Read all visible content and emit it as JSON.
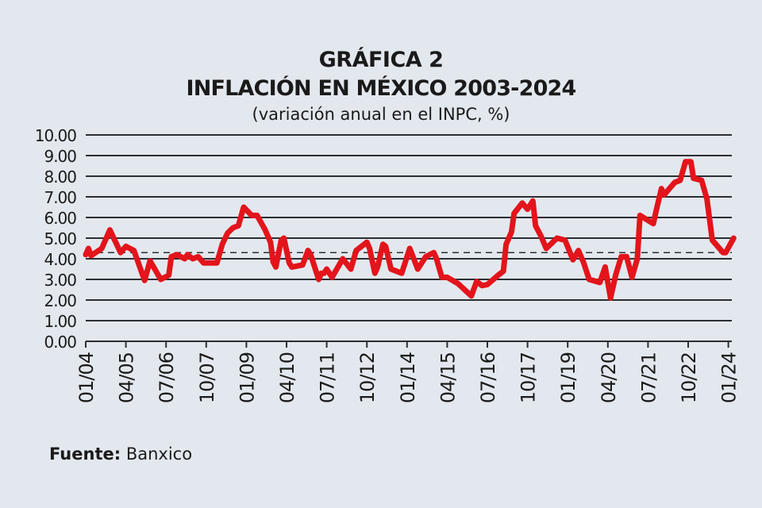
{
  "chart_data": {
    "type": "line",
    "title": "GRÁFICA 2",
    "subtitle": "INFLACIÓN EN MÉXICO 2003-2024",
    "ylabel": "(variación anual en el INPC, %)",
    "xlabel": "",
    "ylim": [
      0,
      10
    ],
    "yticks": [
      "0.00",
      "1.00",
      "2.00",
      "3.00",
      "4.00",
      "5.00",
      "6.00",
      "7.00",
      "8.00",
      "9.00",
      "10.00"
    ],
    "xticks": [
      "01/04",
      "04/05",
      "07/06",
      "10/07",
      "01/09",
      "04/10",
      "07/11",
      "10/12",
      "01/14",
      "04/15",
      "07/16",
      "10/17",
      "01/19",
      "04/20",
      "07/21",
      "10/22",
      "01/24"
    ],
    "grid": true,
    "reference_line": {
      "value": 4.3,
      "style": "dashed"
    },
    "line_color": "#e3141b",
    "series": [
      {
        "points": [
          [
            "2004-01",
            4.2
          ],
          [
            "2004-02",
            4.5
          ],
          [
            "2004-03",
            4.15
          ],
          [
            "2004-07",
            4.5
          ],
          [
            "2004-10",
            5.4
          ],
          [
            "2005-02",
            4.3
          ],
          [
            "2005-04",
            4.6
          ],
          [
            "2005-07",
            4.4
          ],
          [
            "2005-11",
            2.95
          ],
          [
            "2006-01",
            3.9
          ],
          [
            "2006-05",
            3.0
          ],
          [
            "2006-08",
            3.2
          ],
          [
            "2006-09",
            4.1
          ],
          [
            "2006-11",
            4.2
          ],
          [
            "2007-02",
            4.0
          ],
          [
            "2007-03",
            4.2
          ],
          [
            "2007-05",
            4.0
          ],
          [
            "2007-07",
            4.1
          ],
          [
            "2007-09",
            3.8
          ],
          [
            "2008-02",
            3.8
          ],
          [
            "2008-04",
            4.7
          ],
          [
            "2008-06",
            5.25
          ],
          [
            "2008-08",
            5.5
          ],
          [
            "2008-10",
            5.6
          ],
          [
            "2008-12",
            6.5
          ],
          [
            "2009-03",
            6.1
          ],
          [
            "2009-05",
            6.1
          ],
          [
            "2009-08",
            5.4
          ],
          [
            "2009-10",
            4.8
          ],
          [
            "2009-11",
            3.85
          ],
          [
            "2009-12",
            3.6
          ],
          [
            "2010-02",
            4.9
          ],
          [
            "2010-03",
            5.0
          ],
          [
            "2010-05",
            3.8
          ],
          [
            "2010-06",
            3.6
          ],
          [
            "2010-10",
            3.7
          ],
          [
            "2010-12",
            4.4
          ],
          [
            "2011-01",
            4.2
          ],
          [
            "2011-03",
            3.4
          ],
          [
            "2011-04",
            3.0
          ],
          [
            "2011-05",
            3.3
          ],
          [
            "2011-06",
            3.3
          ],
          [
            "2011-07",
            3.5
          ],
          [
            "2011-09",
            3.1
          ],
          [
            "2012-01",
            4.0
          ],
          [
            "2012-04",
            3.5
          ],
          [
            "2012-06",
            4.4
          ],
          [
            "2012-10",
            4.8
          ],
          [
            "2012-11",
            4.5
          ],
          [
            "2013-01",
            3.3
          ],
          [
            "2013-02",
            3.6
          ],
          [
            "2013-04",
            4.7
          ],
          [
            "2013-05",
            4.6
          ],
          [
            "2013-07",
            3.5
          ],
          [
            "2013-11",
            3.3
          ],
          [
            "2014-02",
            4.5
          ],
          [
            "2014-05",
            3.5
          ],
          [
            "2014-08",
            4.1
          ],
          [
            "2014-11",
            4.3
          ],
          [
            "2014-12",
            4.0
          ],
          [
            "2015-02",
            3.1
          ],
          [
            "2015-04",
            3.1
          ],
          [
            "2015-08",
            2.8
          ],
          [
            "2016-01",
            2.2
          ],
          [
            "2016-03",
            2.9
          ],
          [
            "2016-05",
            2.7
          ],
          [
            "2016-07",
            2.75
          ],
          [
            "2016-11",
            3.2
          ],
          [
            "2017-01",
            3.4
          ],
          [
            "2017-02",
            4.7
          ],
          [
            "2017-04",
            5.3
          ],
          [
            "2017-05",
            6.2
          ],
          [
            "2017-08",
            6.7
          ],
          [
            "2017-10",
            6.4
          ],
          [
            "2017-12",
            6.8
          ],
          [
            "2018-01",
            5.6
          ],
          [
            "2018-03",
            5.1
          ],
          [
            "2018-05",
            4.5
          ],
          [
            "2018-09",
            5.0
          ],
          [
            "2018-12",
            4.9
          ],
          [
            "2019-03",
            3.95
          ],
          [
            "2019-05",
            4.4
          ],
          [
            "2019-07",
            3.8
          ],
          [
            "2019-09",
            3.0
          ],
          [
            "2020-01",
            2.85
          ],
          [
            "2020-03",
            3.6
          ],
          [
            "2020-05",
            2.1
          ],
          [
            "2020-07",
            3.25
          ],
          [
            "2020-09",
            4.1
          ],
          [
            "2020-11",
            4.1
          ],
          [
            "2021-01",
            3.1
          ],
          [
            "2021-03",
            4.0
          ],
          [
            "2021-04",
            6.1
          ],
          [
            "2021-09",
            5.7
          ],
          [
            "2021-10",
            6.3
          ],
          [
            "2021-12",
            7.4
          ],
          [
            "2022-01",
            7.1
          ],
          [
            "2022-05",
            7.7
          ],
          [
            "2022-07",
            7.8
          ],
          [
            "2022-09",
            8.7
          ],
          [
            "2022-11",
            8.7
          ],
          [
            "2022-12",
            7.9
          ],
          [
            "2023-03",
            7.8
          ],
          [
            "2023-05",
            6.9
          ],
          [
            "2023-07",
            4.9
          ],
          [
            "2023-11",
            4.3
          ],
          [
            "2023-12",
            4.3
          ],
          [
            "2024-03",
            5.0
          ]
        ]
      }
    ]
  },
  "source": {
    "label": "Fuente:",
    "value": "Banxico"
  }
}
